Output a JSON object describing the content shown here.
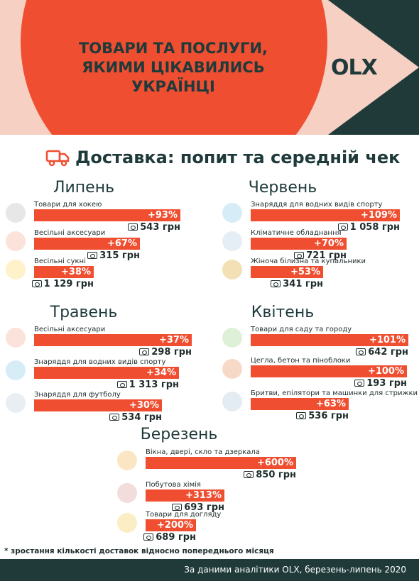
{
  "header": {
    "title_lines": [
      "ТОВАРИ ТА ПОСЛУГИ,",
      "ЯКИМИ ЦІКАВИЛИСЬ",
      "УКРАЇНЦІ"
    ],
    "logo": "OLX"
  },
  "section_title": "Доставка: попит та середній чек",
  "months": [
    {
      "name": "Липень",
      "items": [
        {
          "icon": "hockey-icon",
          "label": "Товари для хокею",
          "growth": "+93%",
          "growth_pct": 93,
          "price": "543 грн"
        },
        {
          "icon": "rings-icon",
          "label": "Весільні аксесуари",
          "growth": "+67%",
          "growth_pct": 67,
          "price": "315 грн"
        },
        {
          "icon": "dress-icon",
          "label": "Весільні сукні",
          "growth": "+38%",
          "growth_pct": 38,
          "price": "1 129 грн"
        }
      ]
    },
    {
      "name": "Червень",
      "items": [
        {
          "icon": "swimmer-icon",
          "label": "Знаряддя для водних видів спорту",
          "growth": "+109%",
          "growth_pct": 109,
          "price": "1 058 грн"
        },
        {
          "icon": "air-conditioner-icon",
          "label": "Кліматичне обладнання",
          "growth": "+70%",
          "growth_pct": 70,
          "price": "721 грн"
        },
        {
          "icon": "lingerie-icon",
          "label": "Жіноча білизна та купальники",
          "growth": "+53%",
          "growth_pct": 53,
          "price": "341 грн"
        }
      ]
    },
    {
      "name": "Травень",
      "items": [
        {
          "icon": "rings-icon",
          "label": "Весільні аксесуари",
          "growth": "+37%",
          "growth_pct": 37,
          "price": "298 грн"
        },
        {
          "icon": "swimmer-icon",
          "label": "Знаряддя для водних видів спорту",
          "growth": "+34%",
          "growth_pct": 34,
          "price": "1 313 грн"
        },
        {
          "icon": "soccer-ball-icon",
          "label": "Знаряддя для футболу",
          "growth": "+30%",
          "growth_pct": 30,
          "price": "534 грн"
        }
      ]
    },
    {
      "name": "Квітень",
      "items": [
        {
          "icon": "sprout-icon",
          "label": "Товари для саду та городу",
          "growth": "+101%",
          "growth_pct": 101,
          "price": "642 грн"
        },
        {
          "icon": "brick-icon",
          "label": "Цегла, бетон та піноблоки",
          "growth": "+100%",
          "growth_pct": 100,
          "price": "193 грн"
        },
        {
          "icon": "razor-icon",
          "label": "Бритви, епілятори та машинки для стрижки",
          "growth": "+63%",
          "growth_pct": 63,
          "price": "536 грн"
        }
      ]
    },
    {
      "name": "Березень",
      "items": [
        {
          "icon": "door-icon",
          "label": "Вікна, двері, скло та дзеркала",
          "growth": "+600%",
          "growth_pct": 600,
          "price": "850 грн"
        },
        {
          "icon": "detergent-icon",
          "label": "Побутова хімія",
          "growth": "+313%",
          "growth_pct": 313,
          "price": "693 грн"
        },
        {
          "icon": "cosmetics-icon",
          "label": "Товари для догляду",
          "growth": "+200%",
          "growth_pct": 200,
          "price": "689 грн"
        }
      ]
    }
  ],
  "footnote": "* зростання кількості доставок  відносно попереднього місяця",
  "footer": "За даними аналітики OLX, березень-липень 2020",
  "colors": {
    "accent": "#f04e30",
    "dark": "#203a3a",
    "peach": "#f7d0c4"
  }
}
